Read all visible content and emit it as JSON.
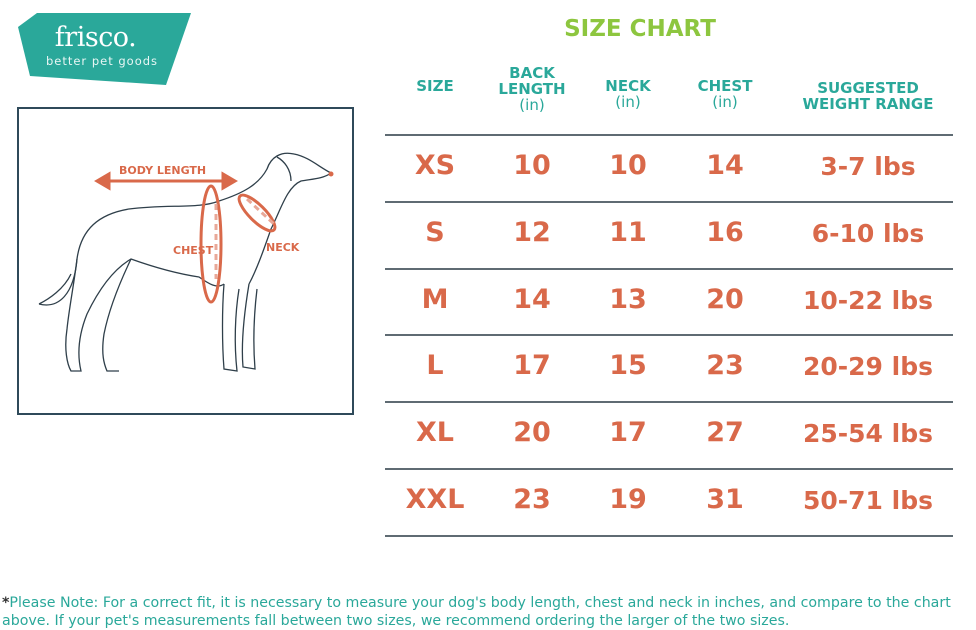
{
  "logo": {
    "brand": "frisco.",
    "tagline": "better pet goods",
    "color": "#2aa89a"
  },
  "illustration": {
    "labels": {
      "body_length": "BODY LENGTH",
      "chest": "CHEST",
      "neck": "NECK"
    }
  },
  "title": "SIZE  CHART",
  "table": {
    "headers": [
      {
        "label": "SIZE",
        "unit": ""
      },
      {
        "label": "BACK LENGTH",
        "unit": "(in)"
      },
      {
        "label": "NECK",
        "unit": "(in)"
      },
      {
        "label": "CHEST",
        "unit": "(in)"
      },
      {
        "label": "SUGGESTED WEIGHT RANGE",
        "unit": ""
      }
    ],
    "rows": [
      [
        "XS",
        "10",
        "10",
        "14",
        "3-7 lbs"
      ],
      [
        "S",
        "12",
        "11",
        "16",
        "6-10 lbs"
      ],
      [
        "M",
        "14",
        "13",
        "20",
        "10-22 lbs"
      ],
      [
        "L",
        "17",
        "15",
        "23",
        "20-29 lbs"
      ],
      [
        "XL",
        "20",
        "17",
        "27",
        "25-54 lbs"
      ],
      [
        "XXL",
        "23",
        "19",
        "31",
        "50-71 lbs"
      ]
    ]
  },
  "note": {
    "asterisk": "*",
    "text": "Please Note: For a correct fit, it is necessary to measure your dog's body length, chest and neck in inches, and compare to the chart above. If your pet's measurements fall between two sizes, we recommend ordering the larger of the two sizes."
  },
  "colors": {
    "teal": "#2aa89a",
    "green": "#8dc63f",
    "orange": "#d9694a",
    "rule": "#5f6b73"
  }
}
